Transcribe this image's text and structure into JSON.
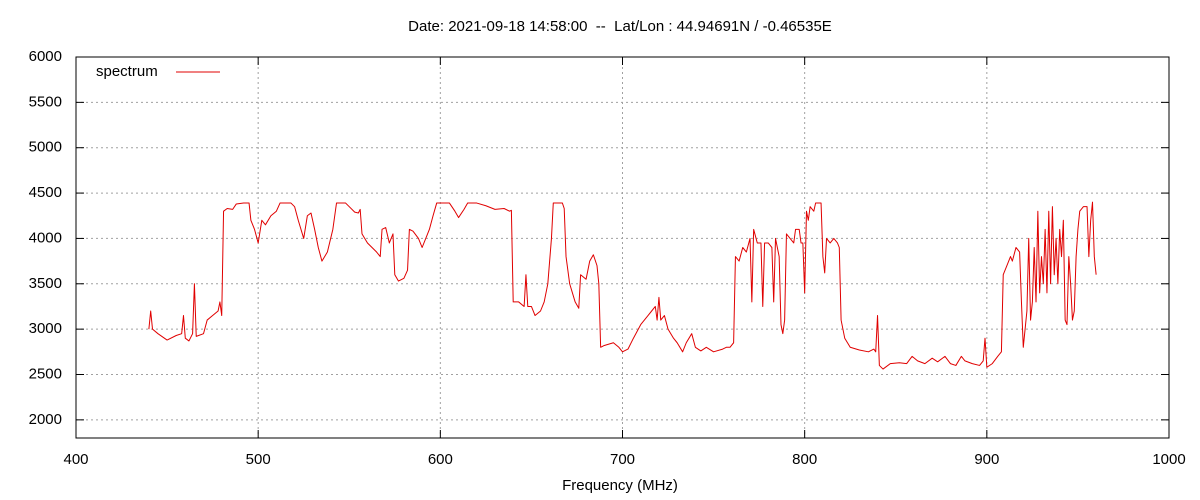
{
  "chart_data": {
    "type": "line",
    "title": "Date: 2021-09-18 14:58:00  --  Lat/Lon : 44.94691N / -0.46535E",
    "x_label": "Frequency (MHz)",
    "xlim": [
      400,
      1000
    ],
    "xticks": [
      400,
      500,
      600,
      700,
      800,
      900,
      1000
    ],
    "ylim": [
      1800,
      6000
    ],
    "yticks": [
      2000,
      2500,
      3000,
      3500,
      4000,
      4500,
      5000,
      5500,
      6000
    ],
    "grid": true,
    "legend": "top-left",
    "x": [
      440,
      441,
      442,
      445,
      450,
      455,
      458,
      459,
      460,
      462,
      464,
      465,
      466,
      470,
      472,
      475,
      478,
      479,
      480,
      481,
      483,
      486,
      488,
      492,
      495,
      496,
      498,
      500,
      502,
      504,
      507,
      510,
      512,
      518,
      520,
      522,
      525,
      527,
      529,
      531,
      533,
      535,
      538,
      541,
      543,
      548,
      550,
      553,
      555,
      556,
      557,
      560,
      565,
      567,
      568,
      570,
      572,
      574,
      575,
      577,
      580,
      582,
      583,
      585,
      588,
      590,
      592,
      594,
      596,
      598,
      605,
      608,
      610,
      613,
      615,
      620,
      625,
      630,
      635,
      638,
      639,
      640,
      643,
      646,
      647,
      648,
      650,
      652,
      655,
      657,
      659,
      661,
      662,
      667,
      668,
      669,
      671,
      674,
      676,
      677,
      680,
      682,
      684,
      686,
      687,
      688,
      690,
      695,
      698,
      700,
      703,
      706,
      710,
      714,
      716,
      718,
      719,
      720,
      721,
      723,
      725,
      728,
      730,
      733,
      735,
      738,
      740,
      743,
      746,
      750,
      755,
      757,
      759,
      761,
      762,
      764,
      766,
      768,
      770,
      771,
      772,
      774,
      776,
      777,
      778,
      780,
      782,
      783,
      784,
      786,
      787,
      788,
      789,
      790,
      792,
      794,
      795,
      797,
      798,
      799,
      800,
      801,
      802,
      803,
      805,
      806,
      809,
      810,
      811,
      812,
      814,
      816,
      818,
      819,
      820,
      822,
      825,
      830,
      835,
      838,
      839,
      840,
      841,
      843,
      847,
      852,
      856,
      859,
      862,
      866,
      870,
      873,
      877,
      880,
      883,
      886,
      888,
      892,
      896,
      898,
      899,
      900,
      903,
      906,
      908,
      909,
      911,
      913,
      914,
      916,
      918,
      919,
      920,
      921,
      922,
      923,
      924,
      925,
      926,
      927,
      928,
      929,
      930,
      931,
      932,
      933,
      934,
      935,
      936,
      937,
      938,
      939,
      940,
      941,
      942,
      943,
      944,
      945,
      946,
      947,
      948,
      949,
      950,
      951,
      953,
      955,
      956,
      957,
      958,
      959,
      960
    ],
    "series": [
      {
        "name": "spectrum",
        "color": "#e00000",
        "values": [
          3000,
          3200,
          3000,
          2950,
          2880,
          2930,
          2950,
          3150,
          2900,
          2870,
          2950,
          3500,
          2920,
          2950,
          3100,
          3150,
          3200,
          3300,
          3150,
          4300,
          4330,
          4320,
          4380,
          4390,
          4390,
          4200,
          4100,
          3950,
          4200,
          4150,
          4250,
          4300,
          4390,
          4390,
          4350,
          4200,
          4000,
          4250,
          4280,
          4100,
          3900,
          3750,
          3850,
          4100,
          4390,
          4390,
          4350,
          4290,
          4280,
          4320,
          4050,
          3950,
          3850,
          3800,
          4100,
          4120,
          3950,
          4050,
          3600,
          3530,
          3560,
          3650,
          4100,
          4080,
          4000,
          3900,
          4000,
          4100,
          4250,
          4390,
          4390,
          4300,
          4230,
          4320,
          4390,
          4390,
          4360,
          4320,
          4330,
          4300,
          4310,
          3300,
          3300,
          3250,
          3600,
          3250,
          3250,
          3150,
          3200,
          3300,
          3500,
          4000,
          4390,
          4390,
          4330,
          3800,
          3500,
          3300,
          3230,
          3600,
          3550,
          3750,
          3820,
          3700,
          3500,
          2800,
          2820,
          2850,
          2800,
          2750,
          2780,
          2900,
          3050,
          3150,
          3200,
          3250,
          3100,
          3350,
          3100,
          3150,
          3000,
          2900,
          2850,
          2750,
          2850,
          2950,
          2800,
          2760,
          2800,
          2750,
          2780,
          2800,
          2800,
          2850,
          3800,
          3750,
          3900,
          3850,
          4000,
          3300,
          4100,
          3950,
          3950,
          3250,
          3950,
          3950,
          3900,
          3300,
          4000,
          3800,
          3050,
          2950,
          3100,
          4050,
          4000,
          3950,
          4100,
          4100,
          3950,
          3950,
          3400,
          4300,
          4200,
          4350,
          4300,
          4390,
          4390,
          3800,
          3620,
          4000,
          3950,
          4000,
          3950,
          3900,
          3100,
          2900,
          2800,
          2770,
          2750,
          2780,
          2750,
          3150,
          2600,
          2560,
          2620,
          2630,
          2620,
          2700,
          2650,
          2620,
          2680,
          2640,
          2700,
          2620,
          2600,
          2700,
          2650,
          2620,
          2600,
          2650,
          2900,
          2580,
          2620,
          2700,
          2750,
          3600,
          3700,
          3800,
          3750,
          3900,
          3850,
          3300,
          2800,
          3000,
          3200,
          4000,
          3100,
          3300,
          3900,
          3300,
          4300,
          3400,
          3800,
          3500,
          4100,
          3400,
          4300,
          3500,
          4350,
          3600,
          4000,
          3500,
          4100,
          3800,
          4200,
          3100,
          3050,
          3800,
          3500,
          3100,
          3200,
          3800,
          4100,
          4300,
          4350,
          4350,
          3800,
          4200,
          4400,
          3800,
          3600
        ]
      }
    ]
  }
}
